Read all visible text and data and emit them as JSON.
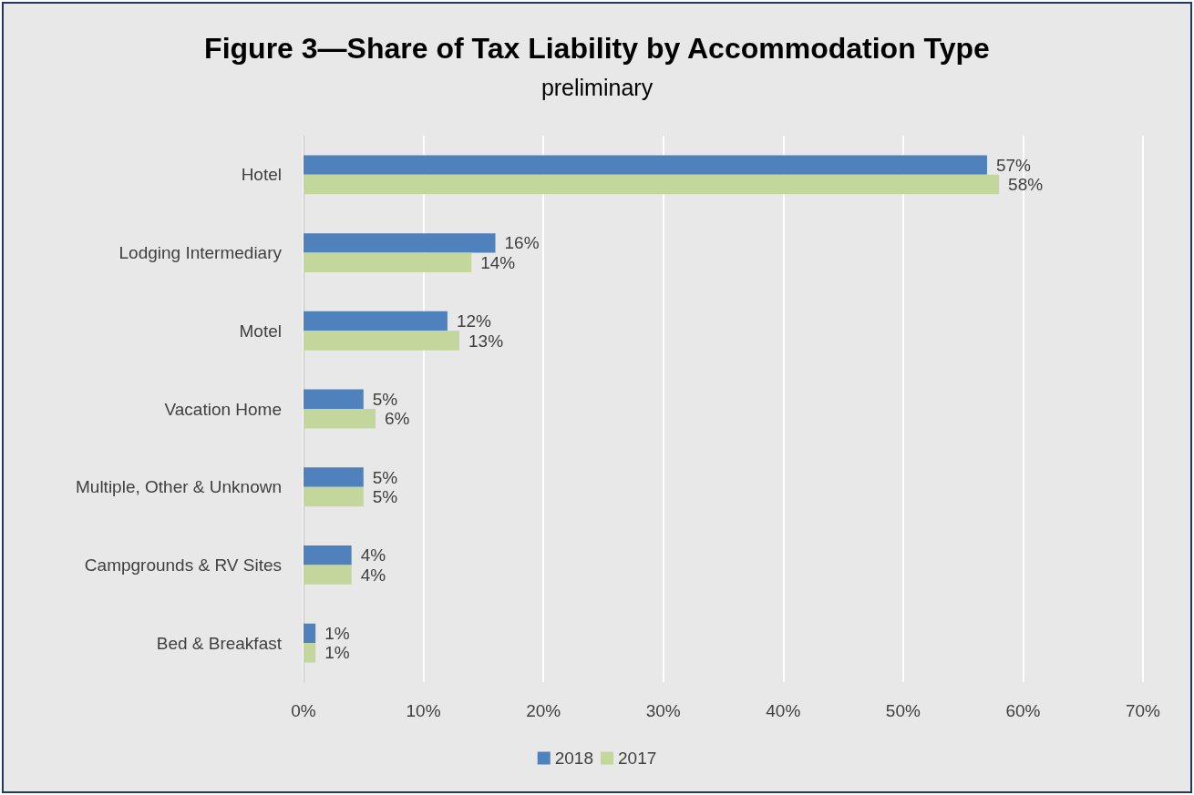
{
  "chart_data": {
    "type": "bar",
    "orientation": "horizontal",
    "title": "Figure 3—Share of Tax Liability by Accommodation Type",
    "subtitle": "preliminary",
    "categories": [
      "Hotel",
      "Lodging Intermediary",
      "Motel",
      "Vacation Home",
      "Multiple, Other & Unknown",
      "Campgrounds & RV Sites",
      "Bed & Breakfast"
    ],
    "series": [
      {
        "name": "2018",
        "color": "#4f81bd",
        "values": [
          57,
          16,
          12,
          5,
          5,
          4,
          1
        ],
        "value_labels": [
          "57%",
          "16%",
          "12%",
          "5%",
          "5%",
          "4%",
          "1%"
        ]
      },
      {
        "name": "2017",
        "color": "#c3d69b",
        "values": [
          58,
          14,
          13,
          6,
          5,
          4,
          1
        ],
        "value_labels": [
          "58%",
          "14%",
          "13%",
          "6%",
          "5%",
          "4%",
          "1%"
        ]
      }
    ],
    "xlim": [
      0,
      70
    ],
    "xticks": [
      {
        "value": 0,
        "label": "0%"
      },
      {
        "value": 10,
        "label": "10%"
      },
      {
        "value": 20,
        "label": "20%"
      },
      {
        "value": 30,
        "label": "30%"
      },
      {
        "value": 40,
        "label": "40%"
      },
      {
        "value": 50,
        "label": "50%"
      },
      {
        "value": 60,
        "label": "60%"
      },
      {
        "value": 70,
        "label": "70%"
      }
    ],
    "grid": "x",
    "legend": "bottom"
  }
}
